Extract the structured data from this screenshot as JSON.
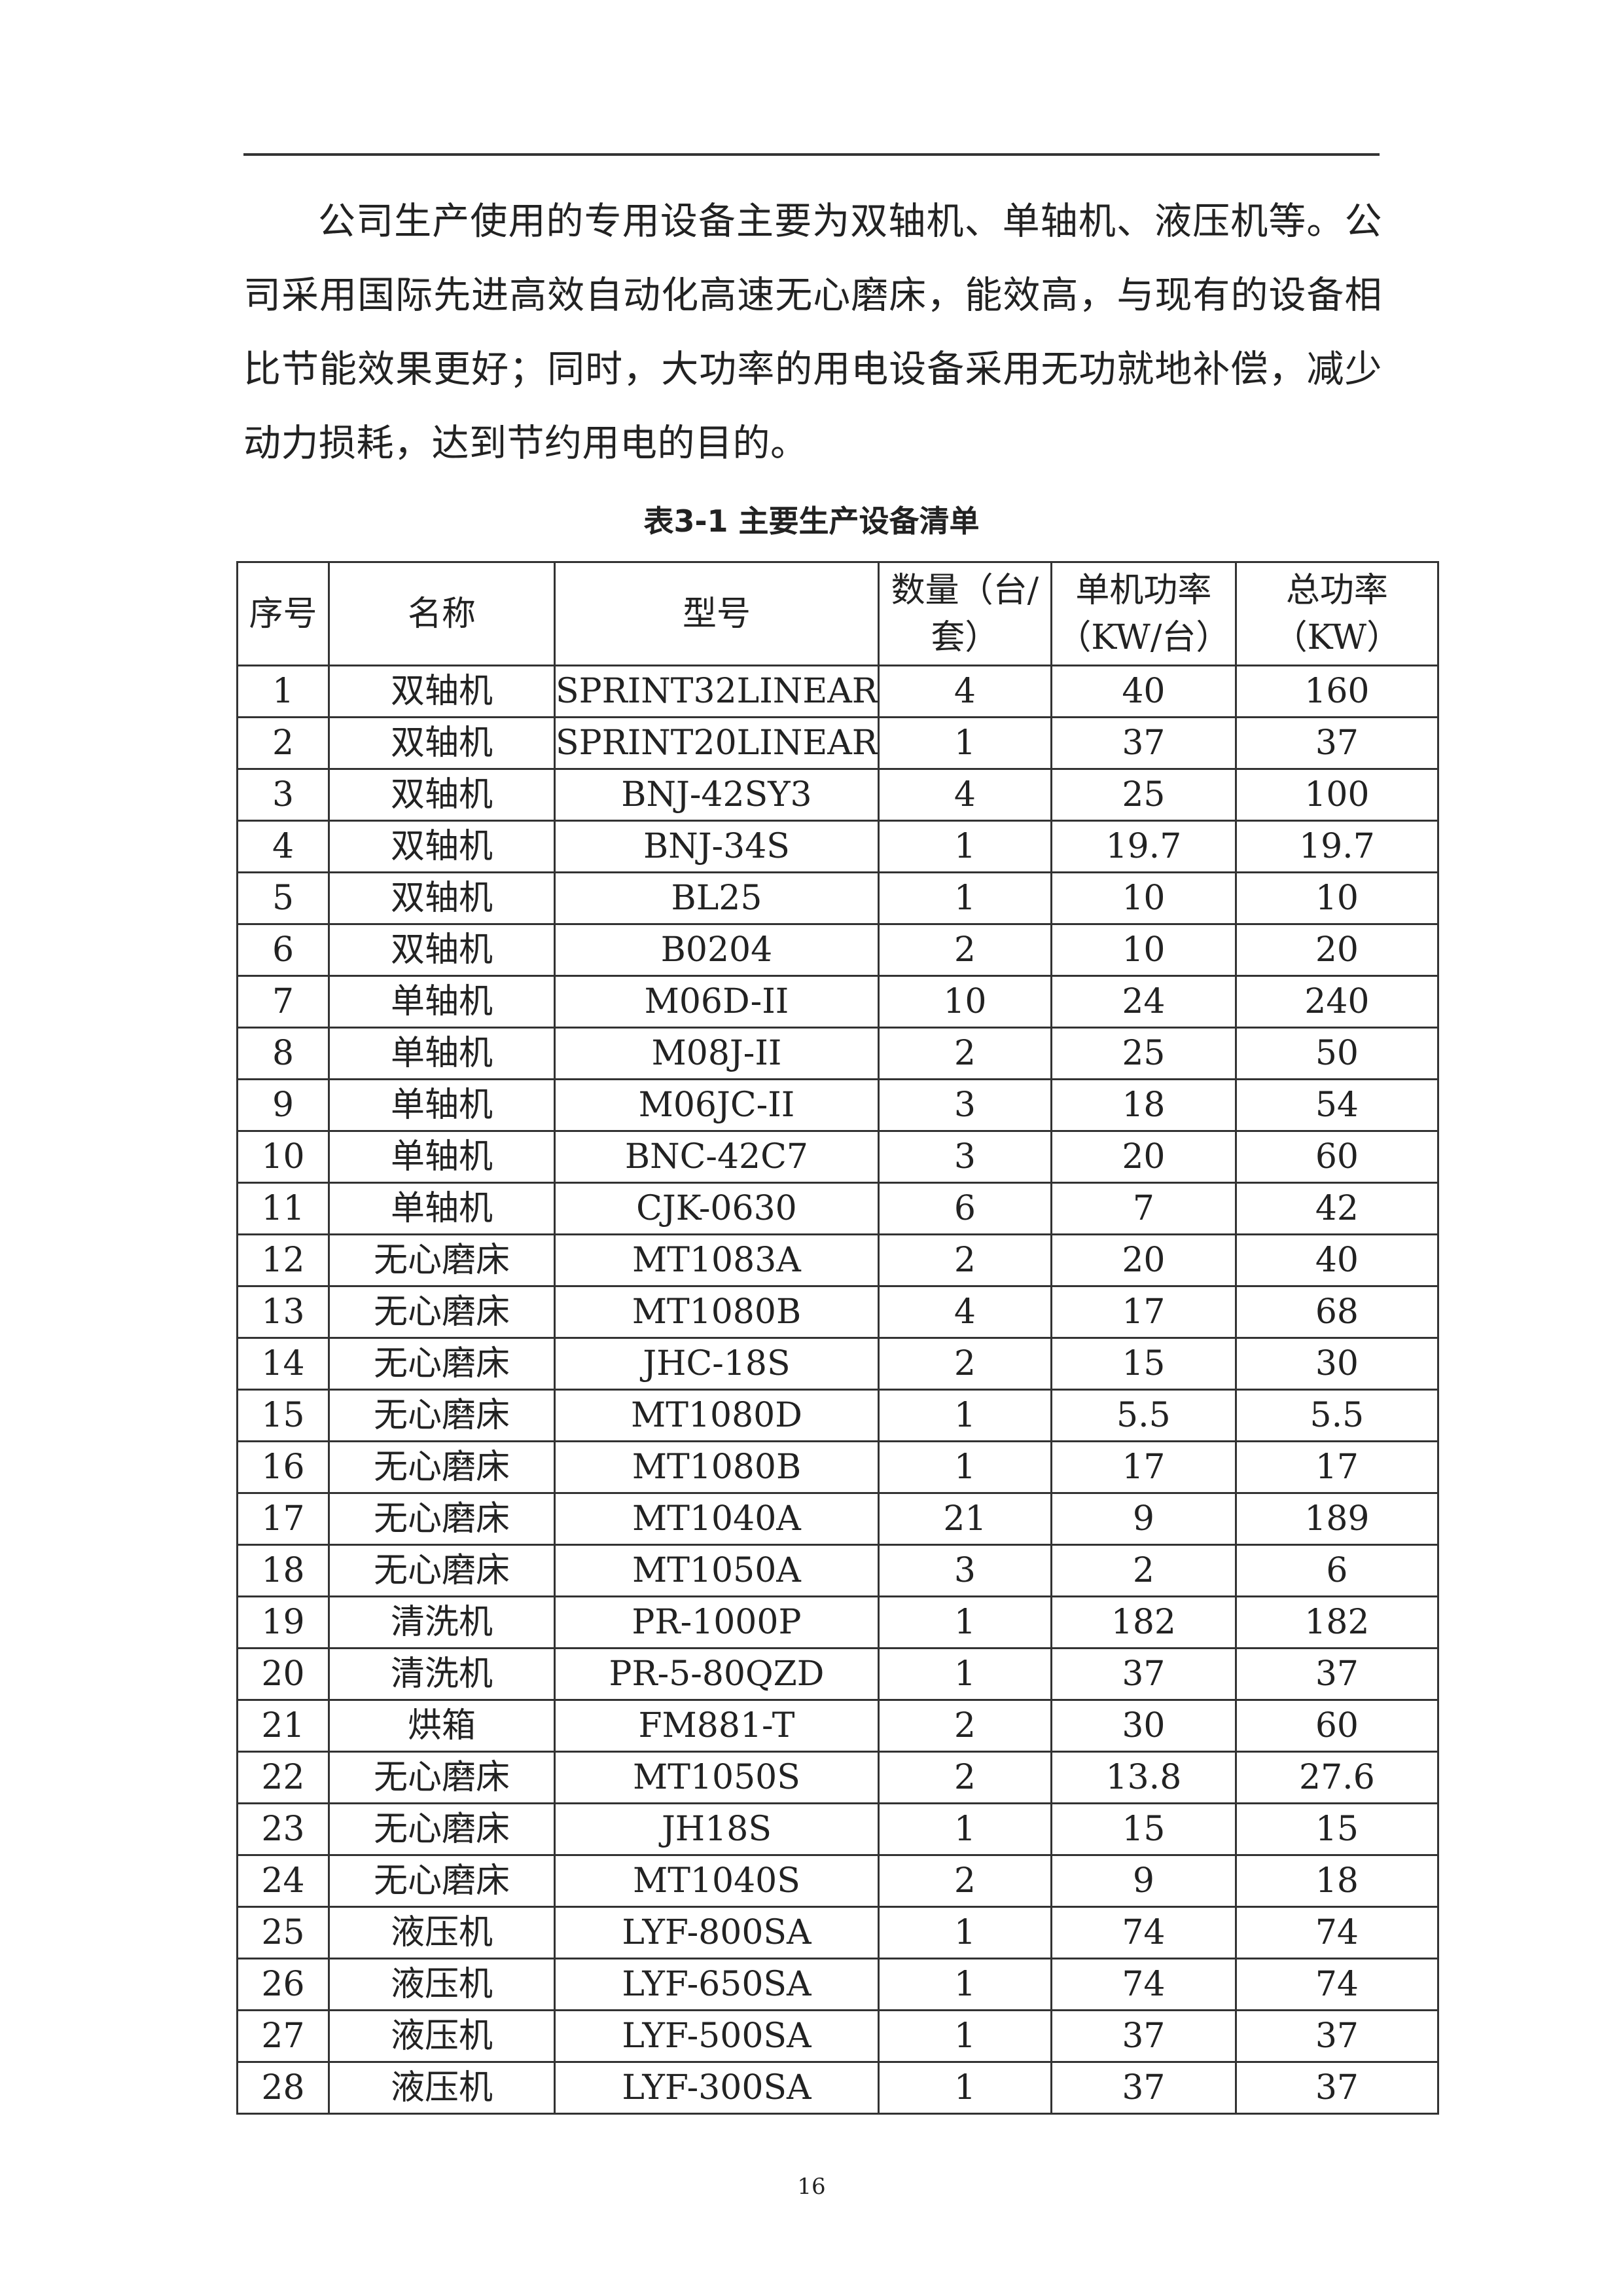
{
  "paragraph": "公司生产使用的专用设备主要为双轴机、单轴机、液压机等。公司采用国际先进高效自动化高速无心磨床，能效高，与现有的设备相比节能效果更好；同时，大功率的用电设备采用无功就地补偿，减少动力损耗，达到节约用电的目的。",
  "table": {
    "caption": "表3-1 主要生产设备清单",
    "headers": [
      "序号",
      "名称",
      "型号",
      "数量（台/套）",
      "单机功率（KW/台）",
      "总功率（KW）"
    ],
    "rows": [
      [
        "1",
        "双轴机",
        "SPRINT32LINEAR",
        "4",
        "40",
        "160"
      ],
      [
        "2",
        "双轴机",
        "SPRINT20LINEAR",
        "1",
        "37",
        "37"
      ],
      [
        "3",
        "双轴机",
        "BNJ-42SY3",
        "4",
        "25",
        "100"
      ],
      [
        "4",
        "双轴机",
        "BNJ-34S",
        "1",
        "19.7",
        "19.7"
      ],
      [
        "5",
        "双轴机",
        "BL25",
        "1",
        "10",
        "10"
      ],
      [
        "6",
        "双轴机",
        "B0204",
        "2",
        "10",
        "20"
      ],
      [
        "7",
        "单轴机",
        "M06D-II",
        "10",
        "24",
        "240"
      ],
      [
        "8",
        "单轴机",
        "M08J-II",
        "2",
        "25",
        "50"
      ],
      [
        "9",
        "单轴机",
        "M06JC-II",
        "3",
        "18",
        "54"
      ],
      [
        "10",
        "单轴机",
        "BNC-42C7",
        "3",
        "20",
        "60"
      ],
      [
        "11",
        "单轴机",
        "CJK-0630",
        "6",
        "7",
        "42"
      ],
      [
        "12",
        "无心磨床",
        "MT1083A",
        "2",
        "20",
        "40"
      ],
      [
        "13",
        "无心磨床",
        "MT1080B",
        "4",
        "17",
        "68"
      ],
      [
        "14",
        "无心磨床",
        "JHC-18S",
        "2",
        "15",
        "30"
      ],
      [
        "15",
        "无心磨床",
        "MT1080D",
        "1",
        "5.5",
        "5.5"
      ],
      [
        "16",
        "无心磨床",
        "MT1080B",
        "1",
        "17",
        "17"
      ],
      [
        "17",
        "无心磨床",
        "MT1040A",
        "21",
        "9",
        "189"
      ],
      [
        "18",
        "无心磨床",
        "MT1050A",
        "3",
        "2",
        "6"
      ],
      [
        "19",
        "清洗机",
        "PR-1000P",
        "1",
        "182",
        "182"
      ],
      [
        "20",
        "清洗机",
        "PR-5-80QZD",
        "1",
        "37",
        "37"
      ],
      [
        "21",
        "烘箱",
        "FM881-T",
        "2",
        "30",
        "60"
      ],
      [
        "22",
        "无心磨床",
        "MT1050S",
        "2",
        "13.8",
        "27.6"
      ],
      [
        "23",
        "无心磨床",
        "JH18S",
        "1",
        "15",
        "15"
      ],
      [
        "24",
        "无心磨床",
        "MT1040S",
        "2",
        "9",
        "18"
      ],
      [
        "25",
        "液压机",
        "LYF-800SA",
        "1",
        "74",
        "74"
      ],
      [
        "26",
        "液压机",
        "LYF-650SA",
        "1",
        "74",
        "74"
      ],
      [
        "27",
        "液压机",
        "LYF-500SA",
        "1",
        "37",
        "37"
      ],
      [
        "28",
        "液压机",
        "LYF-300SA",
        "1",
        "37",
        "37"
      ]
    ]
  },
  "page_number": "16"
}
